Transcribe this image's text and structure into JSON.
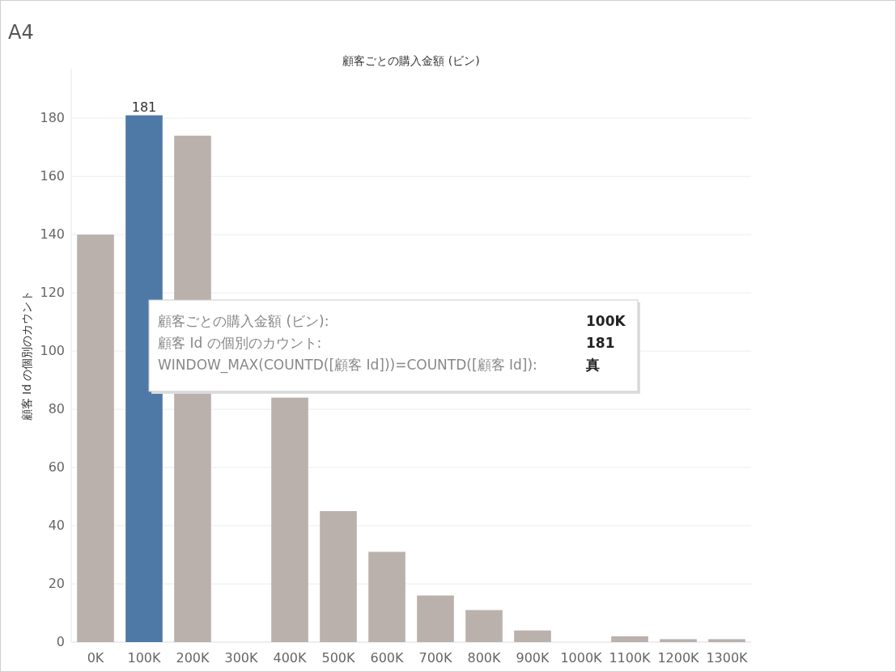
{
  "chart_data": {
    "type": "bar",
    "title": "A4",
    "subtitle": "顧客ごとの購入金額 (ビン)",
    "ylabel": "顧客 Id の個別のカウント",
    "categories": [
      "0K",
      "100K",
      "200K",
      "300K",
      "400K",
      "500K",
      "600K",
      "700K",
      "800K",
      "900K",
      "1000K",
      "1100K",
      "1200K",
      "1300K"
    ],
    "values": [
      140,
      181,
      174,
      null,
      84,
      45,
      31,
      16,
      11,
      4,
      null,
      2,
      1,
      1
    ],
    "colors": [
      "#bab0ac",
      "#4e79a7",
      "#bab0ac",
      "#bab0ac",
      "#bab0ac",
      "#bab0ac",
      "#bab0ac",
      "#bab0ac",
      "#bab0ac",
      "#bab0ac",
      "#bab0ac",
      "#bab0ac",
      "#bab0ac",
      "#bab0ac"
    ],
    "value_labels": [
      null,
      "181",
      null,
      null,
      null,
      null,
      null,
      null,
      null,
      null,
      null,
      null,
      null,
      null
    ],
    "ylim": [
      0,
      197
    ],
    "yticks": [
      0,
      20,
      40,
      60,
      80,
      100,
      120,
      140,
      160,
      180
    ],
    "grid": "y",
    "annotations": [
      "顧客ごとの購入金額 (ビン):",
      "100K",
      "顧客 Id の個別のカウント:",
      "181",
      "WINDOW_MAX(COUNTD([顧客 Id]))=COUNTD([顧客 Id]):",
      "真"
    ]
  }
}
